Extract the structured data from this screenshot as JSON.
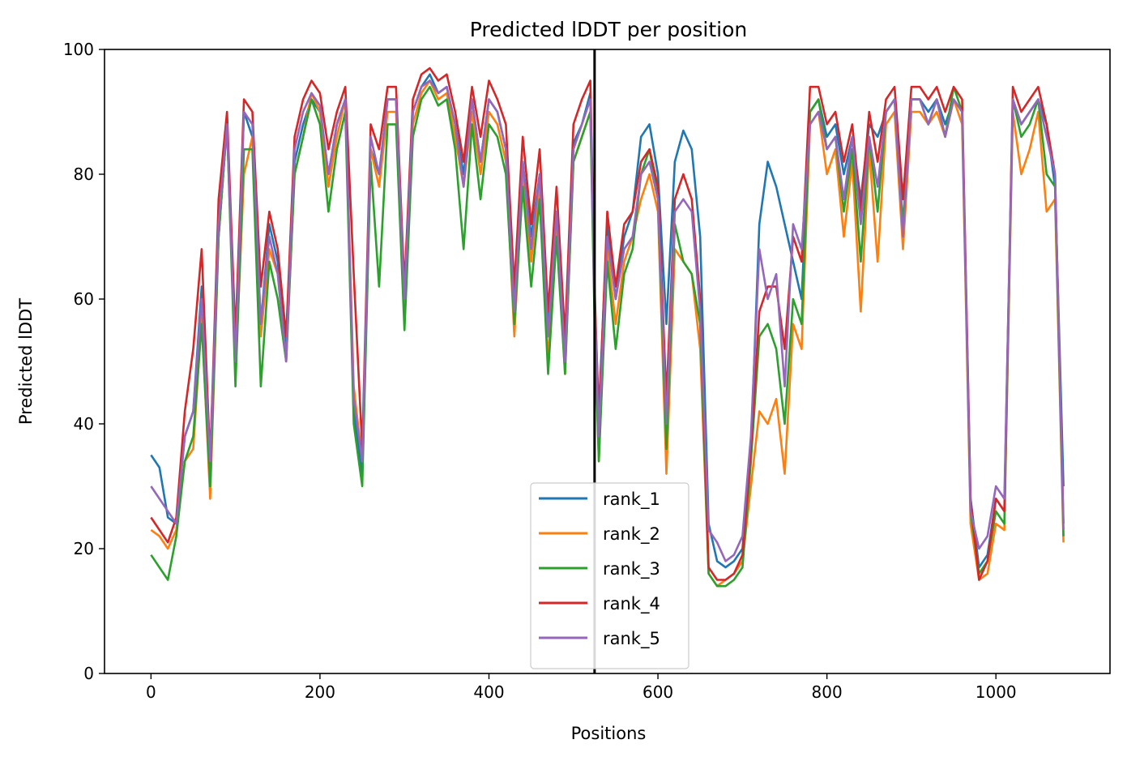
{
  "chart_data": {
    "type": "line",
    "title": "Predicted lDDT per position",
    "xlabel": "Positions",
    "ylabel": "Predicted lDDT",
    "xlim": [
      -55,
      1135
    ],
    "ylim": [
      0,
      100
    ],
    "xticks": [
      0,
      200,
      400,
      600,
      800,
      1000
    ],
    "yticks": [
      0,
      20,
      40,
      60,
      80,
      100
    ],
    "grid": false,
    "legend_position": "lower-center",
    "vertical_line": {
      "x": 525,
      "color": "#000000"
    },
    "x": [
      0,
      10,
      20,
      30,
      40,
      50,
      60,
      70,
      80,
      90,
      100,
      110,
      120,
      130,
      140,
      150,
      160,
      170,
      180,
      190,
      200,
      210,
      220,
      230,
      240,
      250,
      260,
      270,
      280,
      290,
      300,
      310,
      320,
      330,
      340,
      350,
      360,
      370,
      380,
      390,
      400,
      410,
      420,
      430,
      440,
      450,
      460,
      470,
      480,
      490,
      500,
      510,
      520,
      525,
      530,
      540,
      550,
      560,
      570,
      580,
      590,
      600,
      610,
      620,
      630,
      640,
      650,
      660,
      670,
      680,
      690,
      700,
      710,
      720,
      730,
      740,
      750,
      760,
      770,
      780,
      790,
      800,
      810,
      820,
      830,
      840,
      850,
      860,
      870,
      880,
      890,
      900,
      910,
      920,
      930,
      940,
      950,
      960,
      970,
      980,
      990,
      1000,
      1010,
      1020,
      1030,
      1040,
      1050,
      1060,
      1070,
      1080
    ],
    "series": [
      {
        "name": "rank_1",
        "color": "#1f77b4",
        "values": [
          35,
          33,
          25,
          24,
          38,
          42,
          62,
          35,
          70,
          88,
          50,
          90,
          86,
          56,
          72,
          66,
          52,
          82,
          88,
          92,
          90,
          80,
          88,
          92,
          42,
          32,
          84,
          80,
          92,
          92,
          60,
          90,
          94,
          96,
          93,
          94,
          88,
          80,
          92,
          82,
          92,
          90,
          84,
          60,
          82,
          70,
          80,
          56,
          74,
          52,
          85,
          88,
          93,
          60,
          42,
          72,
          60,
          70,
          74,
          86,
          88,
          80,
          56,
          82,
          87,
          84,
          70,
          24,
          18,
          17,
          18,
          20,
          36,
          72,
          82,
          78,
          72,
          66,
          60,
          90,
          92,
          86,
          88,
          80,
          86,
          76,
          88,
          86,
          90,
          92,
          76,
          92,
          92,
          90,
          92,
          88,
          92,
          90,
          28,
          17,
          19,
          28,
          26,
          92,
          88,
          90,
          92,
          88,
          78,
          30
        ]
      },
      {
        "name": "rank_2",
        "color": "#ff7f0e",
        "values": [
          23,
          22,
          20,
          23,
          34,
          36,
          57,
          28,
          70,
          88,
          48,
          80,
          86,
          54,
          68,
          64,
          50,
          80,
          86,
          93,
          90,
          78,
          86,
          92,
          46,
          34,
          84,
          78,
          90,
          90,
          58,
          88,
          93,
          95,
          92,
          93,
          86,
          78,
          90,
          80,
          90,
          88,
          82,
          54,
          80,
          66,
          78,
          50,
          72,
          48,
          82,
          86,
          90,
          58,
          34,
          68,
          56,
          66,
          70,
          76,
          80,
          74,
          32,
          68,
          66,
          64,
          52,
          16,
          14,
          15,
          16,
          18,
          30,
          42,
          40,
          44,
          32,
          56,
          52,
          88,
          90,
          80,
          84,
          70,
          82,
          58,
          84,
          66,
          88,
          90,
          68,
          90,
          90,
          88,
          90,
          86,
          92,
          88,
          24,
          15,
          16,
          24,
          23,
          90,
          80,
          84,
          90,
          74,
          76,
          21
        ]
      },
      {
        "name": "rank_3",
        "color": "#2ca02c",
        "values": [
          19,
          17,
          15,
          22,
          34,
          38,
          56,
          30,
          70,
          88,
          46,
          84,
          84,
          46,
          66,
          60,
          50,
          80,
          86,
          92,
          88,
          74,
          84,
          90,
          40,
          30,
          82,
          62,
          88,
          88,
          55,
          86,
          92,
          94,
          91,
          92,
          84,
          68,
          88,
          76,
          88,
          86,
          80,
          56,
          78,
          62,
          76,
          48,
          70,
          48,
          82,
          86,
          90,
          56,
          34,
          66,
          52,
          64,
          68,
          80,
          84,
          76,
          36,
          72,
          66,
          64,
          56,
          16,
          14,
          14,
          15,
          17,
          34,
          54,
          56,
          52,
          40,
          60,
          56,
          90,
          92,
          84,
          86,
          74,
          84,
          66,
          86,
          74,
          90,
          92,
          72,
          92,
          92,
          88,
          92,
          86,
          94,
          90,
          26,
          16,
          18,
          26,
          24,
          92,
          86,
          88,
          92,
          80,
          78,
          22
        ]
      },
      {
        "name": "rank_4",
        "color": "#d62728",
        "values": [
          25,
          23,
          21,
          25,
          42,
          52,
          68,
          34,
          76,
          90,
          54,
          92,
          90,
          62,
          74,
          68,
          54,
          86,
          92,
          95,
          93,
          84,
          90,
          94,
          64,
          36,
          88,
          84,
          94,
          94,
          62,
          92,
          96,
          97,
          95,
          96,
          90,
          82,
          94,
          86,
          95,
          92,
          88,
          62,
          86,
          72,
          84,
          58,
          78,
          54,
          88,
          92,
          95,
          62,
          40,
          74,
          62,
          72,
          74,
          82,
          84,
          78,
          44,
          76,
          80,
          76,
          60,
          17,
          15,
          15,
          16,
          19,
          36,
          58,
          62,
          62,
          52,
          70,
          66,
          94,
          94,
          88,
          90,
          82,
          88,
          74,
          90,
          82,
          92,
          94,
          76,
          94,
          94,
          92,
          94,
          90,
          94,
          92,
          28,
          15,
          18,
          28,
          26,
          94,
          90,
          92,
          94,
          88,
          80,
          24
        ]
      },
      {
        "name": "rank_5",
        "color": "#9467bd",
        "values": [
          30,
          28,
          26,
          24,
          38,
          42,
          60,
          34,
          72,
          88,
          50,
          90,
          88,
          56,
          70,
          64,
          50,
          84,
          90,
          93,
          91,
          80,
          88,
          92,
          44,
          34,
          86,
          80,
          92,
          92,
          60,
          90,
          94,
          95,
          93,
          94,
          88,
          78,
          92,
          82,
          92,
          90,
          84,
          58,
          82,
          68,
          80,
          54,
          74,
          50,
          84,
          88,
          92,
          60,
          38,
          70,
          60,
          68,
          70,
          80,
          82,
          76,
          40,
          74,
          76,
          74,
          58,
          23,
          21,
          18,
          19,
          22,
          38,
          68,
          60,
          64,
          46,
          72,
          68,
          88,
          90,
          84,
          86,
          76,
          86,
          72,
          86,
          78,
          90,
          92,
          70,
          92,
          92,
          88,
          92,
          86,
          92,
          90,
          26,
          20,
          22,
          30,
          28,
          92,
          88,
          90,
          92,
          86,
          80,
          23
        ]
      }
    ]
  }
}
